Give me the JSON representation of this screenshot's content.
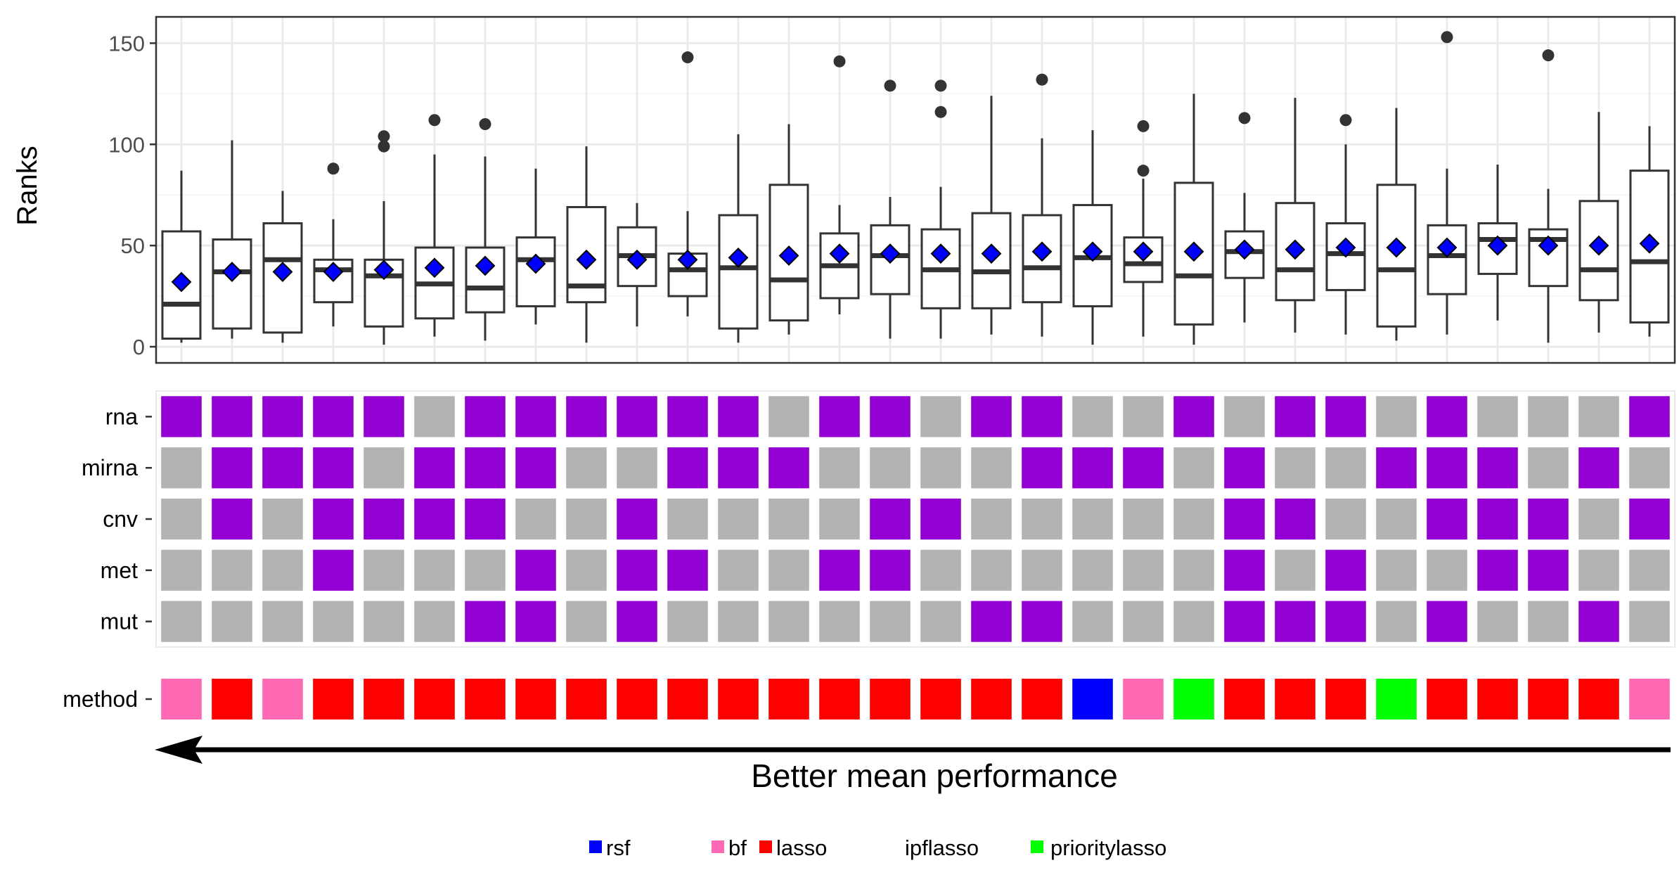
{
  "chart_data": [
    {
      "type": "boxplot",
      "ylabel": "Ranks",
      "xlabel": "",
      "ylim": [
        -8,
        163
      ],
      "yticks": [
        0,
        50,
        100,
        150
      ],
      "grid": true,
      "mean_marker": "diamond",
      "mean_color": "#0000ff",
      "boxes": [
        {
          "q1": 4,
          "median": 21,
          "q3": 57,
          "lower": 2,
          "upper": 87,
          "mean": 32,
          "outliers": []
        },
        {
          "q1": 9,
          "median": 37,
          "q3": 53,
          "lower": 4,
          "upper": 102,
          "mean": 37,
          "outliers": []
        },
        {
          "q1": 7,
          "median": 43,
          "q3": 61,
          "lower": 2,
          "upper": 77,
          "mean": 37,
          "outliers": []
        },
        {
          "q1": 22,
          "median": 38,
          "q3": 43,
          "lower": 10,
          "upper": 63,
          "mean": 37,
          "outliers": [
            88
          ]
        },
        {
          "q1": 10,
          "median": 35,
          "q3": 43,
          "lower": 1,
          "upper": 72,
          "mean": 38,
          "outliers": [
            99,
            104
          ]
        },
        {
          "q1": 14,
          "median": 31,
          "q3": 49,
          "lower": 5,
          "upper": 95,
          "mean": 39,
          "outliers": [
            112
          ]
        },
        {
          "q1": 17,
          "median": 29,
          "q3": 49,
          "lower": 3,
          "upper": 94,
          "mean": 40,
          "outliers": [
            110
          ]
        },
        {
          "q1": 20,
          "median": 43,
          "q3": 54,
          "lower": 11,
          "upper": 88,
          "mean": 41,
          "outliers": []
        },
        {
          "q1": 22,
          "median": 30,
          "q3": 69,
          "lower": 2,
          "upper": 99,
          "mean": 43,
          "outliers": []
        },
        {
          "q1": 30,
          "median": 45,
          "q3": 59,
          "lower": 10,
          "upper": 71,
          "mean": 43,
          "outliers": []
        },
        {
          "q1": 25,
          "median": 38,
          "q3": 46,
          "lower": 15,
          "upper": 67,
          "mean": 43,
          "outliers": [
            143
          ]
        },
        {
          "q1": 9,
          "median": 39,
          "q3": 65,
          "lower": 2,
          "upper": 105,
          "mean": 44,
          "outliers": []
        },
        {
          "q1": 13,
          "median": 33,
          "q3": 80,
          "lower": 6,
          "upper": 110,
          "mean": 45,
          "outliers": []
        },
        {
          "q1": 24,
          "median": 40,
          "q3": 56,
          "lower": 16,
          "upper": 70,
          "mean": 46,
          "outliers": [
            141
          ]
        },
        {
          "q1": 26,
          "median": 45,
          "q3": 60,
          "lower": 4,
          "upper": 74,
          "mean": 46,
          "outliers": [
            129
          ]
        },
        {
          "q1": 19,
          "median": 38,
          "q3": 58,
          "lower": 4,
          "upper": 79,
          "mean": 46,
          "outliers": [
            116,
            129
          ]
        },
        {
          "q1": 19,
          "median": 37,
          "q3": 66,
          "lower": 6,
          "upper": 124,
          "mean": 46,
          "outliers": []
        },
        {
          "q1": 22,
          "median": 39,
          "q3": 65,
          "lower": 5,
          "upper": 103,
          "mean": 47,
          "outliers": [
            132
          ]
        },
        {
          "q1": 20,
          "median": 44,
          "q3": 70,
          "lower": 1,
          "upper": 107,
          "mean": 47,
          "outliers": []
        },
        {
          "q1": 32,
          "median": 41,
          "q3": 54,
          "lower": 5,
          "upper": 83,
          "mean": 47,
          "outliers": [
            87,
            109
          ]
        },
        {
          "q1": 11,
          "median": 35,
          "q3": 81,
          "lower": 1,
          "upper": 125,
          "mean": 47,
          "outliers": []
        },
        {
          "q1": 34,
          "median": 47,
          "q3": 57,
          "lower": 12,
          "upper": 76,
          "mean": 48,
          "outliers": [
            113
          ]
        },
        {
          "q1": 23,
          "median": 38,
          "q3": 71,
          "lower": 7,
          "upper": 123,
          "mean": 48,
          "outliers": []
        },
        {
          "q1": 28,
          "median": 46,
          "q3": 61,
          "lower": 6,
          "upper": 100,
          "mean": 49,
          "outliers": [
            112
          ]
        },
        {
          "q1": 10,
          "median": 38,
          "q3": 80,
          "lower": 3,
          "upper": 118,
          "mean": 49,
          "outliers": []
        },
        {
          "q1": 26,
          "median": 45,
          "q3": 60,
          "lower": 6,
          "upper": 88,
          "mean": 49,
          "outliers": [
            153
          ]
        },
        {
          "q1": 36,
          "median": 53,
          "q3": 61,
          "lower": 13,
          "upper": 90,
          "mean": 50,
          "outliers": []
        },
        {
          "q1": 30,
          "median": 53,
          "q3": 58,
          "lower": 2,
          "upper": 78,
          "mean": 50,
          "outliers": [
            144
          ]
        },
        {
          "q1": 23,
          "median": 38,
          "q3": 72,
          "lower": 7,
          "upper": 116,
          "mean": 50,
          "outliers": []
        },
        {
          "q1": 12,
          "median": 42,
          "q3": 87,
          "lower": 5,
          "upper": 109,
          "mean": 51,
          "outliers": []
        }
      ]
    },
    {
      "type": "heatmap",
      "rows": [
        "rna",
        "mirna",
        "cnv",
        "met",
        "mut"
      ],
      "colors": {
        "1": "#9400d3",
        "0": "#b3b3b3"
      },
      "values": [
        [
          1,
          1,
          1,
          1,
          1,
          0,
          1,
          1,
          1,
          1,
          1,
          1,
          0,
          1,
          1,
          0,
          1,
          1,
          0,
          0,
          1,
          0,
          1,
          1,
          0,
          1,
          0,
          0,
          0,
          1
        ],
        [
          0,
          1,
          1,
          1,
          0,
          1,
          1,
          1,
          0,
          0,
          1,
          1,
          1,
          0,
          0,
          0,
          0,
          1,
          1,
          1,
          0,
          1,
          0,
          0,
          1,
          1,
          1,
          0,
          1,
          0
        ],
        [
          0,
          1,
          0,
          1,
          1,
          1,
          1,
          0,
          0,
          1,
          0,
          0,
          0,
          0,
          1,
          1,
          0,
          0,
          0,
          0,
          0,
          1,
          1,
          0,
          0,
          1,
          1,
          1,
          0,
          1
        ],
        [
          0,
          0,
          0,
          1,
          0,
          0,
          0,
          1,
          0,
          1,
          1,
          0,
          0,
          1,
          1,
          0,
          0,
          0,
          0,
          0,
          0,
          1,
          0,
          1,
          0,
          0,
          1,
          1,
          0,
          0
        ],
        [
          0,
          0,
          0,
          0,
          0,
          0,
          1,
          1,
          0,
          1,
          0,
          0,
          0,
          0,
          0,
          0,
          1,
          1,
          0,
          0,
          0,
          1,
          1,
          1,
          0,
          1,
          0,
          0,
          1,
          0
        ]
      ]
    },
    {
      "type": "heatmap",
      "rows": [
        "method"
      ],
      "values": [
        [
          "bf",
          "lasso",
          "bf",
          "lasso",
          "lasso",
          "lasso",
          "lasso",
          "lasso",
          "lasso",
          "lasso",
          "lasso",
          "lasso",
          "lasso",
          "lasso",
          "lasso",
          "lasso",
          "lasso",
          "lasso",
          "rsf",
          "bf",
          "prioritylasso",
          "lasso",
          "lasso",
          "lasso",
          "prioritylasso",
          "lasso",
          "lasso",
          "lasso",
          "lasso",
          "bf"
        ]
      ],
      "colors": {
        "rsf": "#0000ff",
        "bf": "#ff69b4",
        "lasso": "#ff0000",
        "ipflasso": "#ffffff",
        "prioritylasso": "#00ff00"
      }
    }
  ],
  "arrow_label": "Better mean performance",
  "legend": [
    {
      "key": "rsf",
      "color": "#0000ff"
    },
    {
      "key": "bf",
      "color": "#ff69b4"
    },
    {
      "key": "lasso",
      "color": "#ff0000"
    },
    {
      "key": "ipflasso",
      "color": "#ffffff"
    },
    {
      "key": "prioritylasso",
      "color": "#00ff00"
    }
  ]
}
